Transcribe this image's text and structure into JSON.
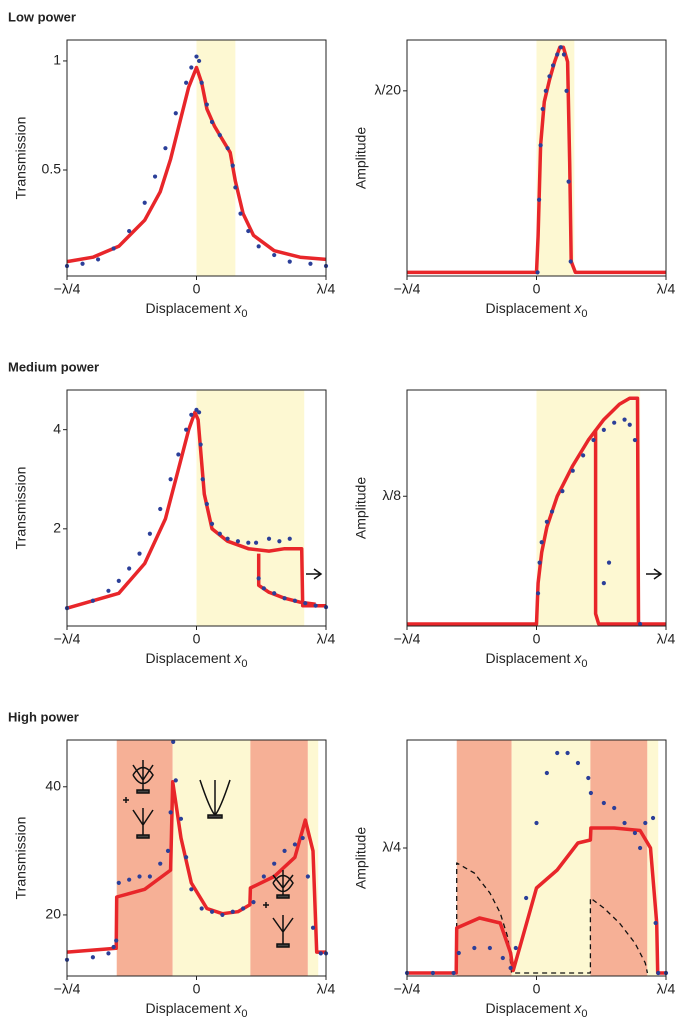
{
  "chart_data": [
    {
      "type": "line",
      "title": "Low power",
      "ylabel": "Transmission",
      "xlabel": {
        "text": "Displacement",
        "var": "x",
        "sub": "0"
      },
      "xlim": [
        -0.25,
        0.25
      ],
      "xticks": [
        {
          "value": -0.25,
          "label": "−λ/4"
        },
        0,
        {
          "value": 0.25,
          "label": "λ/4"
        }
      ],
      "ylim": [
        0.014,
        1.096
      ],
      "yticks": [
        0.5,
        1
      ],
      "bands": [
        {
          "x": [
            0,
            0.075
          ],
          "color": "#fdf8d2"
        }
      ],
      "series": [
        {
          "style": "line",
          "color": "#e8262a",
          "x": [
            -0.25,
            -0.2,
            -0.15,
            -0.1,
            -0.07,
            -0.05,
            -0.03,
            -0.015,
            0,
            0.01,
            0.02,
            0.035,
            0.05,
            0.065,
            0.075,
            0.09,
            0.11,
            0.15,
            0.2,
            0.25
          ],
          "values": [
            0.08,
            0.1,
            0.15,
            0.27,
            0.4,
            0.55,
            0.74,
            0.88,
            0.97,
            0.9,
            0.78,
            0.7,
            0.64,
            0.58,
            0.45,
            0.3,
            0.2,
            0.13,
            0.1,
            0.09
          ]
        },
        {
          "style": "dots",
          "color": "#2b3f99",
          "x": [
            -0.25,
            -0.22,
            -0.19,
            -0.16,
            -0.13,
            -0.1,
            -0.08,
            -0.06,
            -0.04,
            -0.02,
            -0.01,
            0,
            0.005,
            0.01,
            0.02,
            0.03,
            0.045,
            0.06,
            0.07,
            0.075,
            0.085,
            0.1,
            0.12,
            0.15,
            0.18,
            0.22,
            0.25
          ],
          "values": [
            0.06,
            0.07,
            0.09,
            0.14,
            0.22,
            0.35,
            0.47,
            0.6,
            0.76,
            0.9,
            0.97,
            1.02,
            1.0,
            0.9,
            0.8,
            0.72,
            0.66,
            0.6,
            0.52,
            0.42,
            0.3,
            0.22,
            0.15,
            0.11,
            0.08,
            0.07,
            0.06
          ]
        }
      ]
    },
    {
      "type": "line",
      "ylabel": "Amplitude",
      "xlabel": {
        "text": "Displacement",
        "var": "x",
        "sub": "0"
      },
      "xlim": [
        -0.25,
        0.25
      ],
      "xticks": [
        {
          "value": -0.25,
          "label": "−λ/4"
        },
        0,
        {
          "value": 0.25,
          "label": "λ/4"
        }
      ],
      "ylim": [
        -0.001,
        0.064
      ],
      "yticks": [
        {
          "value": 0.05,
          "label": "λ/20"
        }
      ],
      "bands": [
        {
          "x": [
            0,
            0.073
          ],
          "color": "#fdf8d2"
        }
      ],
      "series": [
        {
          "style": "line",
          "color": "#e8262a",
          "x": [
            -0.25,
            0,
            0.003,
            0.008,
            0.015,
            0.025,
            0.035,
            0.045,
            0.052,
            0.06,
            0.064,
            0.067,
            0.075,
            0.25
          ],
          "values": [
            0,
            0,
            0.01,
            0.035,
            0.047,
            0.053,
            0.058,
            0.062,
            0.062,
            0.058,
            0.03,
            0.003,
            0,
            0
          ]
        },
        {
          "style": "dots",
          "color": "#2b3f99",
          "x": [
            0.002,
            0.005,
            0.008,
            0.012,
            0.018,
            0.025,
            0.032,
            0.04,
            0.047,
            0.053,
            0.058,
            0.062,
            0.066
          ],
          "values": [
            0,
            0.02,
            0.035,
            0.045,
            0.05,
            0.054,
            0.057,
            0.06,
            0.062,
            0.06,
            0.05,
            0.025,
            0.003
          ]
        }
      ]
    },
    {
      "type": "line",
      "title": "Medium power",
      "ylabel": "Transmission",
      "xlabel": {
        "text": "Displacement",
        "var": "x",
        "sub": "0"
      },
      "xlim": [
        -0.25,
        0.25
      ],
      "xticks": [
        {
          "value": -0.25,
          "label": "−λ/4"
        },
        0,
        {
          "value": 0.25,
          "label": "λ/4"
        }
      ],
      "ylim": [
        0.04,
        4.8
      ],
      "yticks": [
        2,
        4
      ],
      "bands": [
        {
          "x": [
            0,
            0.208
          ],
          "color": "#fdf8d2"
        }
      ],
      "series": [
        {
          "style": "line",
          "color": "#e8262a",
          "x": [
            -0.25,
            -0.15,
            -0.1,
            -0.06,
            -0.035,
            -0.015,
            -0.003,
            0.003,
            0.015,
            0.03,
            0.06,
            0.1,
            0.14,
            0.17,
            0.203,
            0.205,
            0.25
          ],
          "values": [
            0.4,
            0.7,
            1.3,
            2.2,
            3.2,
            4.0,
            4.35,
            4.2,
            2.7,
            2.0,
            1.75,
            1.6,
            1.55,
            1.6,
            1.6,
            0.45,
            0.45
          ]
        },
        {
          "style": "line",
          "color": "#e8262a",
          "x": [
            0.12,
            0.12,
            0.14,
            0.17,
            0.2,
            0.23
          ],
          "values": [
            1.5,
            0.86,
            0.72,
            0.6,
            0.52,
            0.48
          ]
        },
        {
          "style": "dots",
          "color": "#2b3f99",
          "x": [
            -0.25,
            -0.2,
            -0.17,
            -0.15,
            -0.13,
            -0.11,
            -0.09,
            -0.07,
            -0.05,
            -0.035,
            -0.02,
            -0.01,
            0,
            0.005,
            0.008,
            0.012,
            0.02,
            0.03,
            0.045,
            0.06,
            0.08,
            0.1,
            0.115,
            0.12,
            0.13,
            0.15,
            0.17,
            0.19,
            0.21,
            0.23,
            0.25,
            0.14,
            0.16,
            0.18
          ],
          "values": [
            0.4,
            0.55,
            0.75,
            0.95,
            1.2,
            1.5,
            1.9,
            2.4,
            3.0,
            3.5,
            4.0,
            4.3,
            4.4,
            4.35,
            3.7,
            3.0,
            2.5,
            2.1,
            1.9,
            1.8,
            1.75,
            1.72,
            1.72,
            1.0,
            0.8,
            0.7,
            0.6,
            0.55,
            0.5,
            0.45,
            0.42,
            1.8,
            1.75,
            1.8
          ]
        }
      ]
    },
    {
      "type": "line",
      "ylabel": "Amplitude",
      "xlabel": {
        "text": "Displacement",
        "var": "x",
        "sub": "0"
      },
      "xlim": [
        -0.25,
        0.25
      ],
      "xticks": [
        {
          "value": -0.25,
          "label": "−λ/4"
        },
        0,
        {
          "value": 0.25,
          "label": "λ/4"
        }
      ],
      "ylim": [
        -0.002,
        0.229
      ],
      "yticks": [
        {
          "value": 0.125,
          "label": "λ/8"
        }
      ],
      "bands": [
        {
          "x": [
            0,
            0.2
          ],
          "color": "#fdf8d2"
        }
      ],
      "series": [
        {
          "style": "line",
          "color": "#e8262a",
          "x": [
            -0.25,
            0,
            0.003,
            0.01,
            0.02,
            0.04,
            0.07,
            0.1,
            0.13,
            0.16,
            0.18,
            0.195,
            0.197,
            0.25
          ],
          "values": [
            0,
            0,
            0.04,
            0.07,
            0.095,
            0.125,
            0.155,
            0.18,
            0.2,
            0.215,
            0.221,
            0.221,
            0,
            0
          ]
        },
        {
          "style": "line",
          "color": "#e8262a",
          "x": [
            0.114,
            0.114,
            0.12,
            0.2
          ],
          "values": [
            0.19,
            0.01,
            0,
            0
          ]
        },
        {
          "style": "dots",
          "color": "#2b3f99",
          "x": [
            0.003,
            0.006,
            0.01,
            0.02,
            0.03,
            0.05,
            0.07,
            0.09,
            0.11,
            0.13,
            0.15,
            0.17,
            0.18,
            0.19,
            0.2,
            0.13,
            0.14
          ],
          "values": [
            0.03,
            0.06,
            0.08,
            0.1,
            0.11,
            0.13,
            0.15,
            0.165,
            0.18,
            0.19,
            0.197,
            0.2,
            0.195,
            0.18,
            0.0,
            0.04,
            0.06
          ]
        }
      ]
    },
    {
      "type": "line",
      "title": "High power",
      "ylabel": "Transmission",
      "xlabel": {
        "text": "Displacement",
        "var": "x",
        "sub": "0"
      },
      "xlim": [
        -0.25,
        0.25
      ],
      "xticks": [
        {
          "value": -0.25,
          "label": "−λ/4"
        },
        0,
        {
          "value": 0.25,
          "label": "λ/4"
        }
      ],
      "ylim": [
        10.47,
        47.3
      ],
      "yticks": [
        20,
        40
      ],
      "bands": [
        {
          "x": [
            -0.154,
            -0.046
          ],
          "color": "#f6b096"
        },
        {
          "x": [
            -0.046,
            0.104
          ],
          "color": "#fdf8d2"
        },
        {
          "x": [
            0.104,
            0.215
          ],
          "color": "#f6b096"
        },
        {
          "x": [
            0.215,
            0.235
          ],
          "color": "#fdf8d2"
        }
      ],
      "series": [
        {
          "style": "line",
          "color": "#e8262a",
          "x": [
            -0.25,
            -0.155,
            -0.154,
            -0.1,
            -0.05,
            -0.046,
            -0.03,
            -0.01,
            0.02,
            0.05,
            0.08,
            0.103,
            0.104,
            0.15,
            0.19,
            0.21,
            0.225,
            0.232,
            0.25
          ],
          "values": [
            14.2,
            14.8,
            22.8,
            24,
            27,
            40.8,
            32,
            25,
            21,
            20.2,
            20.5,
            21.6,
            24.2,
            26,
            29,
            34.8,
            30,
            14.2,
            14.2
          ]
        },
        {
          "style": "dots",
          "color": "#2b3f99",
          "x": [
            -0.25,
            -0.2,
            -0.17,
            -0.16,
            -0.155,
            -0.15,
            -0.13,
            -0.11,
            -0.09,
            -0.07,
            -0.055,
            -0.05,
            -0.045,
            -0.04,
            -0.03,
            -0.02,
            -0.01,
            0.01,
            0.03,
            0.05,
            0.07,
            0.09,
            0.11,
            0.13,
            0.15,
            0.17,
            0.19,
            0.205,
            0.215,
            0.225,
            0.24,
            0.25
          ],
          "values": [
            13,
            13.4,
            14,
            15,
            16,
            25,
            25.5,
            26,
            26,
            28,
            30,
            36,
            47,
            41,
            35,
            29,
            24,
            21,
            20.5,
            20,
            20.5,
            21,
            22,
            26,
            28,
            30,
            31,
            32,
            26,
            18,
            14,
            14
          ]
        }
      ]
    },
    {
      "type": "line",
      "ylabel": "Amplitude",
      "xlabel": {
        "text": "Displacement",
        "var": "x",
        "sub": "0"
      },
      "xlim": [
        -0.25,
        0.25
      ],
      "xticks": [
        {
          "value": -0.25,
          "label": "−λ/4"
        },
        0,
        {
          "value": 0.25,
          "label": "λ/4"
        }
      ],
      "ylim": [
        -0.006,
        0.466
      ],
      "yticks": [
        {
          "value": 0.25,
          "label": "λ/4"
        }
      ],
      "bands": [
        {
          "x": [
            -0.154,
            -0.048
          ],
          "color": "#f6b096"
        },
        {
          "x": [
            -0.048,
            0.104
          ],
          "color": "#fdf8d2"
        },
        {
          "x": [
            0.104,
            0.214
          ],
          "color": "#f6b096"
        },
        {
          "x": [
            0.214,
            0.235
          ],
          "color": "#fdf8d2"
        }
      ],
      "series": [
        {
          "style": "dashed",
          "color": "#111111",
          "x": [
            -0.154,
            -0.154,
            -0.12,
            -0.09,
            -0.07,
            -0.055,
            -0.048,
            0.104,
            0.104,
            0.13,
            0.16,
            0.19,
            0.21,
            0.214
          ],
          "values": [
            0,
            0.22,
            0.2,
            0.16,
            0.12,
            0.07,
            0,
            0,
            0.15,
            0.13,
            0.1,
            0.06,
            0.02,
            0
          ]
        },
        {
          "style": "line",
          "color": "#e8262a",
          "x": [
            -0.25,
            -0.155,
            -0.154,
            -0.11,
            -0.07,
            -0.05,
            -0.045,
            -0.03,
            0,
            0.04,
            0.08,
            0.104,
            0.105,
            0.15,
            0.2,
            0.22,
            0.232,
            0.234,
            0.25
          ],
          "values": [
            0,
            0,
            0.09,
            0.11,
            0.1,
            0.04,
            0.005,
            0.06,
            0.17,
            0.206,
            0.26,
            0.266,
            0.29,
            0.29,
            0.285,
            0.25,
            0.1,
            0,
            0
          ]
        },
        {
          "style": "dots",
          "color": "#2b3f99",
          "x": [
            -0.25,
            -0.2,
            -0.16,
            -0.15,
            -0.12,
            -0.09,
            -0.065,
            -0.05,
            -0.04,
            -0.02,
            0,
            0.02,
            0.04,
            0.06,
            0.08,
            0.1,
            0.105,
            0.13,
            0.15,
            0.17,
            0.19,
            0.2,
            0.21,
            0.225,
            0.23,
            0.235,
            0.25
          ],
          "values": [
            0,
            0,
            0,
            0.04,
            0.05,
            0.05,
            0.03,
            0.01,
            0.05,
            0.15,
            0.3,
            0.4,
            0.44,
            0.44,
            0.42,
            0.39,
            0.36,
            0.34,
            0.33,
            0.3,
            0.28,
            0.25,
            0.3,
            0.31,
            0.1,
            0,
            0
          ]
        }
      ]
    }
  ]
}
